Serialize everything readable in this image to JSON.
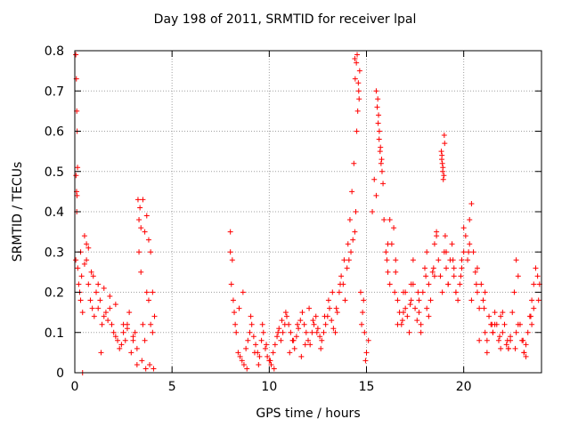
{
  "chart_data": {
    "type": "scatter",
    "title": "Day 198 of 2011, SRMTID for receiver lpal",
    "xlabel": "GPS time / hours",
    "ylabel": "SRMTID / TECUs",
    "xlim": [
      0,
      24
    ],
    "ylim": [
      0,
      0.8
    ],
    "xticks": [
      "0",
      "5",
      "10",
      "15",
      "20"
    ],
    "yticks": [
      "0",
      "0.1",
      "0.2",
      "0.3",
      "0.4",
      "0.5",
      "0.6",
      "0.7",
      "0.8"
    ],
    "grid": true,
    "marker": "+",
    "color": "#ff0000",
    "series": [
      {
        "name": "SRMTID",
        "x": [
          0.05,
          0.1,
          0.15,
          0.2,
          0.25,
          0.3,
          0.35,
          0.4,
          0.5,
          0.6,
          0.7,
          0.8,
          0.9,
          1.0,
          1.1,
          1.2,
          1.3,
          1.4,
          1.5,
          1.6,
          1.7,
          1.8,
          1.9,
          2.0,
          2.1,
          2.2,
          2.3,
          2.4,
          2.5,
          2.6,
          2.7,
          2.8,
          2.9,
          3.0,
          3.1,
          3.2,
          3.3,
          3.4,
          3.5,
          3.6,
          3.7,
          3.8,
          3.9,
          4.0,
          4.1,
          0.05,
          0.08,
          0.1,
          0.12,
          0.14,
          0.06,
          0.09,
          0.11,
          0.3,
          0.5,
          0.6,
          0.7,
          0.85,
          0.95,
          1.2,
          1.5,
          1.8,
          2.1,
          2.5,
          2.7,
          3.0,
          3.25,
          3.3,
          3.35,
          3.4,
          3.5,
          3.6,
          3.7,
          3.8,
          3.9,
          4.0,
          3.2,
          3.45,
          3.65,
          3.85,
          4.05,
          0.4,
          1.35,
          8.0,
          8.1,
          8.2,
          8.3,
          8.4,
          8.5,
          8.6,
          8.7,
          8.8,
          8.9,
          9.0,
          9.1,
          9.2,
          9.3,
          9.4,
          9.5,
          9.6,
          9.7,
          9.8,
          9.9,
          10.0,
          10.1,
          10.2,
          10.3,
          10.4,
          10.5,
          10.6,
          10.7,
          10.8,
          10.9,
          11.0,
          11.1,
          11.2,
          11.3,
          11.4,
          11.5,
          11.6,
          11.7,
          11.8,
          11.9,
          12.0,
          12.1,
          12.2,
          12.3,
          12.4,
          12.5,
          12.6,
          12.7,
          12.8,
          12.9,
          13.0,
          13.1,
          13.2,
          13.3,
          13.4,
          13.5,
          13.6,
          13.7,
          13.8,
          13.9,
          14.0,
          8.0,
          8.05,
          8.15,
          8.25,
          8.45,
          8.65,
          8.85,
          9.05,
          9.25,
          9.45,
          9.65,
          9.85,
          10.05,
          10.25,
          10.45,
          10.65,
          10.85,
          11.05,
          11.25,
          11.45,
          11.65,
          11.85,
          12.05,
          12.25,
          12.45,
          12.65,
          12.85,
          13.05,
          13.25,
          13.45,
          13.65,
          13.85,
          14.1,
          14.2,
          14.3,
          14.4,
          14.45,
          14.5,
          14.55,
          14.6,
          14.65,
          14.4,
          14.42,
          14.48,
          14.52,
          14.58,
          14.62,
          14.35,
          14.25,
          14.15,
          14.05,
          14.7,
          14.8,
          14.9,
          15.0,
          15.1,
          14.75,
          14.85,
          14.95,
          15.3,
          15.4,
          15.5,
          15.55,
          15.6,
          15.65,
          15.7,
          15.75,
          15.8,
          15.5,
          15.58,
          15.62,
          15.66,
          15.72,
          15.78,
          15.85,
          15.9,
          16.0,
          16.1,
          16.2,
          16.3,
          16.4,
          16.5,
          16.6,
          16.7,
          16.8,
          16.9,
          17.0,
          17.1,
          17.2,
          17.3,
          17.4,
          17.5,
          17.6,
          17.7,
          17.8,
          17.9,
          18.0,
          18.1,
          18.2,
          18.3,
          18.4,
          18.5,
          18.6,
          18.7,
          18.8,
          18.9,
          19.0,
          19.1,
          19.2,
          19.3,
          19.4,
          19.5,
          19.6,
          19.7,
          19.8,
          19.9,
          20.0,
          20.1,
          20.2,
          20.3,
          20.4,
          20.5,
          20.6,
          20.7,
          20.8,
          20.9,
          21.0,
          21.1,
          21.2,
          21.3,
          21.4,
          21.5,
          21.6,
          21.7,
          21.8,
          21.9,
          22.0,
          22.1,
          22.2,
          22.3,
          22.4,
          22.5,
          22.6,
          22.7,
          22.8,
          22.9,
          23.0,
          23.1,
          23.2,
          23.3,
          23.4,
          23.5,
          23.6,
          23.7,
          23.8,
          18.85,
          18.9,
          18.95,
          19.0,
          18.88,
          18.92,
          18.98,
          19.02,
          18.87,
          18.93,
          16.2,
          16.6,
          17.0,
          17.4,
          17.8,
          18.2,
          18.6,
          19.2,
          19.6,
          20.0,
          20.4,
          20.8,
          21.2,
          21.6,
          22.0,
          22.4,
          22.8,
          23.2,
          23.6,
          16.1,
          16.5,
          16.9,
          17.3,
          17.7,
          18.1,
          18.5,
          19.1,
          19.5,
          19.9,
          20.3,
          20.7,
          21.1,
          21.5,
          21.9,
          22.3,
          22.7,
          23.1,
          23.5,
          23.9,
          16.05,
          16.45,
          16.85,
          17.25,
          17.65,
          18.05,
          18.45,
          19.05,
          19.45,
          19.85,
          20.25,
          20.65,
          21.05,
          21.45,
          21.85,
          22.25,
          22.65,
          23.05,
          23.45,
          23.85
        ],
        "y": [
          0.28,
          0.4,
          0.26,
          0.22,
          0.2,
          0.18,
          0.24,
          0.15,
          0.27,
          0.32,
          0.22,
          0.18,
          0.16,
          0.14,
          0.2,
          0.16,
          0.18,
          0.12,
          0.14,
          0.15,
          0.13,
          0.16,
          0.12,
          0.1,
          0.09,
          0.08,
          0.06,
          0.07,
          0.1,
          0.08,
          0.12,
          0.15,
          0.05,
          0.08,
          0.1,
          0.06,
          0.3,
          0.25,
          0.12,
          0.08,
          0.2,
          0.18,
          0.12,
          0.1,
          0.14,
          0.79,
          0.73,
          0.65,
          0.6,
          0.51,
          0.49,
          0.45,
          0.44,
          0.3,
          0.34,
          0.28,
          0.31,
          0.25,
          0.24,
          0.22,
          0.21,
          0.19,
          0.17,
          0.12,
          0.11,
          0.09,
          0.43,
          0.38,
          0.41,
          0.36,
          0.43,
          0.35,
          0.39,
          0.33,
          0.3,
          0.2,
          0.02,
          0.03,
          0.01,
          0.02,
          0.01,
          0.0,
          0.05,
          0.35,
          0.28,
          0.15,
          0.1,
          0.05,
          0.04,
          0.03,
          0.02,
          0.06,
          0.08,
          0.1,
          0.12,
          0.09,
          0.07,
          0.05,
          0.04,
          0.08,
          0.1,
          0.06,
          0.04,
          0.03,
          0.02,
          0.05,
          0.07,
          0.09,
          0.11,
          0.08,
          0.1,
          0.12,
          0.14,
          0.12,
          0.1,
          0.08,
          0.06,
          0.09,
          0.11,
          0.13,
          0.15,
          0.12,
          0.1,
          0.08,
          0.07,
          0.1,
          0.12,
          0.14,
          0.11,
          0.09,
          0.08,
          0.1,
          0.12,
          0.14,
          0.16,
          0.13,
          0.11,
          0.1,
          0.15,
          0.2,
          0.24,
          0.22,
          0.18,
          0.26,
          0.3,
          0.22,
          0.18,
          0.12,
          0.16,
          0.2,
          0.01,
          0.14,
          0.05,
          0.02,
          0.12,
          0.07,
          0.03,
          0.01,
          0.1,
          0.13,
          0.15,
          0.05,
          0.08,
          0.12,
          0.04,
          0.07,
          0.16,
          0.13,
          0.1,
          0.06,
          0.14,
          0.18,
          0.2,
          0.16,
          0.22,
          0.28,
          0.28,
          0.3,
          0.33,
          0.35,
          0.4,
          0.6,
          0.65,
          0.7,
          0.75,
          0.78,
          0.73,
          0.77,
          0.79,
          0.72,
          0.68,
          0.52,
          0.45,
          0.38,
          0.32,
          0.2,
          0.15,
          0.1,
          0.05,
          0.08,
          0.12,
          0.18,
          0.03,
          0.4,
          0.48,
          0.7,
          0.66,
          0.62,
          0.58,
          0.55,
          0.52,
          0.5,
          0.44,
          0.68,
          0.64,
          0.6,
          0.56,
          0.53,
          0.47,
          0.38,
          0.3,
          0.25,
          0.22,
          0.32,
          0.36,
          0.28,
          0.18,
          0.15,
          0.12,
          0.2,
          0.16,
          0.14,
          0.1,
          0.18,
          0.22,
          0.16,
          0.13,
          0.15,
          0.12,
          0.2,
          0.26,
          0.3,
          0.22,
          0.18,
          0.25,
          0.32,
          0.35,
          0.28,
          0.24,
          0.2,
          0.3,
          0.26,
          0.22,
          0.28,
          0.32,
          0.24,
          0.2,
          0.18,
          0.22,
          0.26,
          0.3,
          0.34,
          0.28,
          0.38,
          0.42,
          0.3,
          0.25,
          0.2,
          0.16,
          0.22,
          0.18,
          0.1,
          0.08,
          0.14,
          0.12,
          0.1,
          0.15,
          0.12,
          0.08,
          0.06,
          0.1,
          0.12,
          0.07,
          0.06,
          0.09,
          0.15,
          0.2,
          0.28,
          0.24,
          0.12,
          0.08,
          0.05,
          0.04,
          0.1,
          0.14,
          0.18,
          0.22,
          0.26,
          0.24,
          0.55,
          0.52,
          0.48,
          0.59,
          0.54,
          0.5,
          0.49,
          0.57,
          0.53,
          0.51,
          0.38,
          0.12,
          0.2,
          0.28,
          0.1,
          0.14,
          0.34,
          0.22,
          0.2,
          0.36,
          0.18,
          0.08,
          0.05,
          0.12,
          0.15,
          0.08,
          0.12,
          0.07,
          0.16,
          0.32,
          0.25,
          0.15,
          0.22,
          0.18,
          0.16,
          0.24,
          0.3,
          0.26,
          0.28,
          0.32,
          0.26,
          0.2,
          0.1,
          0.14,
          0.06,
          0.1,
          0.05,
          0.12,
          0.22,
          0.28,
          0.2,
          0.13,
          0.17,
          0.2,
          0.24,
          0.26,
          0.34,
          0.28,
          0.24,
          0.3,
          0.22,
          0.16,
          0.12,
          0.09,
          0.08,
          0.06,
          0.08,
          0.14,
          0.18
        ]
      }
    ]
  }
}
